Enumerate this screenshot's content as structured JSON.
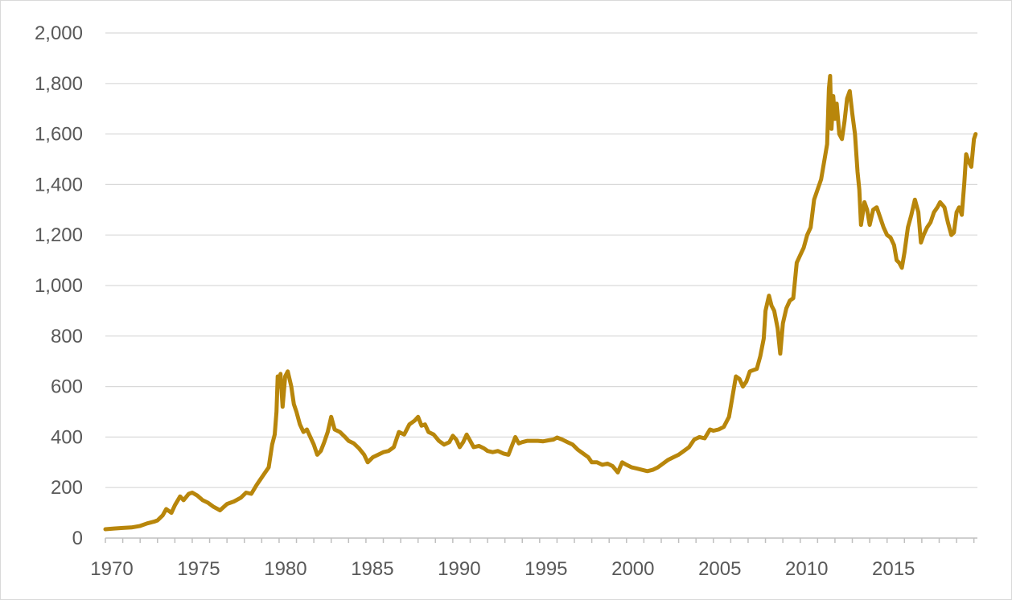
{
  "chart_data": {
    "type": "line",
    "title": "",
    "xlabel": "",
    "ylabel": "",
    "xlim": [
      1970,
      2019.3
    ],
    "ylim": [
      0,
      2000
    ],
    "x_ticks": [
      1970,
      1975,
      1980,
      1985,
      1990,
      1995,
      2000,
      2005,
      2010,
      2015
    ],
    "x_tick_labels": [
      "1970",
      "1975",
      "1980",
      "1985",
      "1990",
      "1995",
      "2000",
      "2005",
      "2010",
      "2015"
    ],
    "y_ticks": [
      0,
      200,
      400,
      600,
      800,
      1000,
      1200,
      1400,
      1600,
      1800,
      2000
    ],
    "y_tick_labels": [
      "0",
      "200",
      "400",
      "600",
      "800",
      "1,000",
      "1,200",
      "1,400",
      "1,600",
      "1,800",
      "2,000"
    ],
    "grid": true,
    "legend": "none",
    "series": [
      {
        "color": "#b8860b",
        "points": [
          [
            1970.0,
            35
          ],
          [
            1970.5,
            38
          ],
          [
            1971.0,
            40
          ],
          [
            1971.5,
            42
          ],
          [
            1972.0,
            48
          ],
          [
            1972.4,
            58
          ],
          [
            1972.8,
            65
          ],
          [
            1973.0,
            70
          ],
          [
            1973.3,
            90
          ],
          [
            1973.5,
            115
          ],
          [
            1973.8,
            100
          ],
          [
            1974.0,
            130
          ],
          [
            1974.3,
            165
          ],
          [
            1974.5,
            150
          ],
          [
            1974.8,
            175
          ],
          [
            1975.0,
            180
          ],
          [
            1975.3,
            168
          ],
          [
            1975.6,
            150
          ],
          [
            1975.9,
            140
          ],
          [
            1976.2,
            125
          ],
          [
            1976.6,
            110
          ],
          [
            1977.0,
            135
          ],
          [
            1977.4,
            145
          ],
          [
            1977.8,
            160
          ],
          [
            1978.1,
            180
          ],
          [
            1978.4,
            175
          ],
          [
            1978.7,
            210
          ],
          [
            1978.9,
            230
          ],
          [
            1979.1,
            250
          ],
          [
            1979.4,
            280
          ],
          [
            1979.6,
            370
          ],
          [
            1979.75,
            410
          ],
          [
            1979.85,
            500
          ],
          [
            1979.92,
            640
          ],
          [
            1980.0,
            600
          ],
          [
            1980.08,
            650
          ],
          [
            1980.2,
            520
          ],
          [
            1980.35,
            640
          ],
          [
            1980.5,
            660
          ],
          [
            1980.7,
            600
          ],
          [
            1980.85,
            530
          ],
          [
            1981.0,
            500
          ],
          [
            1981.2,
            450
          ],
          [
            1981.4,
            420
          ],
          [
            1981.6,
            430
          ],
          [
            1981.8,
            400
          ],
          [
            1982.0,
            370
          ],
          [
            1982.2,
            330
          ],
          [
            1982.4,
            345
          ],
          [
            1982.6,
            380
          ],
          [
            1982.8,
            420
          ],
          [
            1983.0,
            480
          ],
          [
            1983.2,
            430
          ],
          [
            1983.5,
            420
          ],
          [
            1983.8,
            400
          ],
          [
            1984.0,
            385
          ],
          [
            1984.3,
            375
          ],
          [
            1984.6,
            355
          ],
          [
            1984.9,
            330
          ],
          [
            1985.1,
            300
          ],
          [
            1985.4,
            320
          ],
          [
            1985.7,
            330
          ],
          [
            1986.0,
            340
          ],
          [
            1986.3,
            345
          ],
          [
            1986.6,
            360
          ],
          [
            1986.9,
            420
          ],
          [
            1987.2,
            410
          ],
          [
            1987.5,
            450
          ],
          [
            1987.8,
            465
          ],
          [
            1988.0,
            480
          ],
          [
            1988.2,
            445
          ],
          [
            1988.4,
            450
          ],
          [
            1988.6,
            420
          ],
          [
            1988.9,
            410
          ],
          [
            1989.2,
            385
          ],
          [
            1989.5,
            370
          ],
          [
            1989.8,
            380
          ],
          [
            1990.0,
            405
          ],
          [
            1990.2,
            390
          ],
          [
            1990.4,
            360
          ],
          [
            1990.6,
            380
          ],
          [
            1990.8,
            410
          ],
          [
            1991.0,
            385
          ],
          [
            1991.2,
            360
          ],
          [
            1991.5,
            365
          ],
          [
            1991.8,
            355
          ],
          [
            1992.0,
            345
          ],
          [
            1992.3,
            340
          ],
          [
            1992.6,
            345
          ],
          [
            1992.9,
            335
          ],
          [
            1993.2,
            330
          ],
          [
            1993.4,
            365
          ],
          [
            1993.6,
            400
          ],
          [
            1993.8,
            375
          ],
          [
            1994.0,
            380
          ],
          [
            1994.3,
            385
          ],
          [
            1994.6,
            385
          ],
          [
            1994.9,
            385
          ],
          [
            1995.2,
            383
          ],
          [
            1995.5,
            387
          ],
          [
            1995.8,
            390
          ],
          [
            1996.0,
            398
          ],
          [
            1996.3,
            390
          ],
          [
            1996.6,
            380
          ],
          [
            1996.9,
            370
          ],
          [
            1997.2,
            350
          ],
          [
            1997.5,
            335
          ],
          [
            1997.8,
            320
          ],
          [
            1998.0,
            300
          ],
          [
            1998.3,
            300
          ],
          [
            1998.6,
            290
          ],
          [
            1998.9,
            295
          ],
          [
            1999.2,
            285
          ],
          [
            1999.5,
            260
          ],
          [
            1999.75,
            300
          ],
          [
            2000.0,
            290
          ],
          [
            2000.3,
            280
          ],
          [
            2000.6,
            275
          ],
          [
            2000.9,
            270
          ],
          [
            2001.2,
            265
          ],
          [
            2001.5,
            270
          ],
          [
            2001.8,
            280
          ],
          [
            2002.1,
            295
          ],
          [
            2002.4,
            310
          ],
          [
            2002.7,
            320
          ],
          [
            2003.0,
            330
          ],
          [
            2003.3,
            345
          ],
          [
            2003.6,
            360
          ],
          [
            2003.9,
            390
          ],
          [
            2004.2,
            400
          ],
          [
            2004.5,
            395
          ],
          [
            2004.8,
            430
          ],
          [
            2005.0,
            425
          ],
          [
            2005.3,
            430
          ],
          [
            2005.6,
            440
          ],
          [
            2005.9,
            480
          ],
          [
            2006.1,
            560
          ],
          [
            2006.3,
            640
          ],
          [
            2006.5,
            630
          ],
          [
            2006.7,
            600
          ],
          [
            2006.9,
            620
          ],
          [
            2007.1,
            660
          ],
          [
            2007.3,
            665
          ],
          [
            2007.5,
            670
          ],
          [
            2007.7,
            720
          ],
          [
            2007.9,
            790
          ],
          [
            2008.0,
            900
          ],
          [
            2008.2,
            960
          ],
          [
            2008.35,
            920
          ],
          [
            2008.5,
            900
          ],
          [
            2008.7,
            830
          ],
          [
            2008.85,
            730
          ],
          [
            2009.0,
            850
          ],
          [
            2009.2,
            910
          ],
          [
            2009.4,
            940
          ],
          [
            2009.6,
            950
          ],
          [
            2009.8,
            1090
          ],
          [
            2010.0,
            1120
          ],
          [
            2010.2,
            1150
          ],
          [
            2010.4,
            1200
          ],
          [
            2010.6,
            1230
          ],
          [
            2010.8,
            1340
          ],
          [
            2011.0,
            1380
          ],
          [
            2011.2,
            1420
          ],
          [
            2011.4,
            1500
          ],
          [
            2011.55,
            1560
          ],
          [
            2011.65,
            1780
          ],
          [
            2011.72,
            1830
          ],
          [
            2011.8,
            1620
          ],
          [
            2011.9,
            1750
          ],
          [
            2012.0,
            1660
          ],
          [
            2012.1,
            1720
          ],
          [
            2012.25,
            1600
          ],
          [
            2012.4,
            1580
          ],
          [
            2012.55,
            1650
          ],
          [
            2012.7,
            1740
          ],
          [
            2012.85,
            1770
          ],
          [
            2013.0,
            1680
          ],
          [
            2013.15,
            1600
          ],
          [
            2013.3,
            1450
          ],
          [
            2013.4,
            1380
          ],
          [
            2013.5,
            1240
          ],
          [
            2013.7,
            1330
          ],
          [
            2013.85,
            1300
          ],
          [
            2014.0,
            1240
          ],
          [
            2014.2,
            1300
          ],
          [
            2014.4,
            1310
          ],
          [
            2014.6,
            1270
          ],
          [
            2014.8,
            1230
          ],
          [
            2015.0,
            1200
          ],
          [
            2015.2,
            1190
          ],
          [
            2015.4,
            1160
          ],
          [
            2015.55,
            1100
          ],
          [
            2015.7,
            1090
          ],
          [
            2015.85,
            1070
          ],
          [
            2016.0,
            1130
          ],
          [
            2016.2,
            1230
          ],
          [
            2016.4,
            1280
          ],
          [
            2016.6,
            1340
          ],
          [
            2016.8,
            1290
          ],
          [
            2016.95,
            1170
          ],
          [
            2017.1,
            1200
          ],
          [
            2017.3,
            1230
          ],
          [
            2017.5,
            1250
          ],
          [
            2017.7,
            1290
          ],
          [
            2017.9,
            1310
          ],
          [
            2018.05,
            1330
          ],
          [
            2018.3,
            1310
          ],
          [
            2018.5,
            1250
          ],
          [
            2018.7,
            1200
          ],
          [
            2018.85,
            1210
          ],
          [
            2019.0,
            1290
          ],
          [
            2019.15,
            1310
          ],
          [
            2019.3,
            1280
          ],
          [
            2019.45,
            1410
          ],
          [
            2019.55,
            1520
          ],
          [
            2019.7,
            1490
          ],
          [
            2019.85,
            1470
          ],
          [
            2020.0,
            1580
          ],
          [
            2020.1,
            1600
          ]
        ]
      }
    ]
  }
}
